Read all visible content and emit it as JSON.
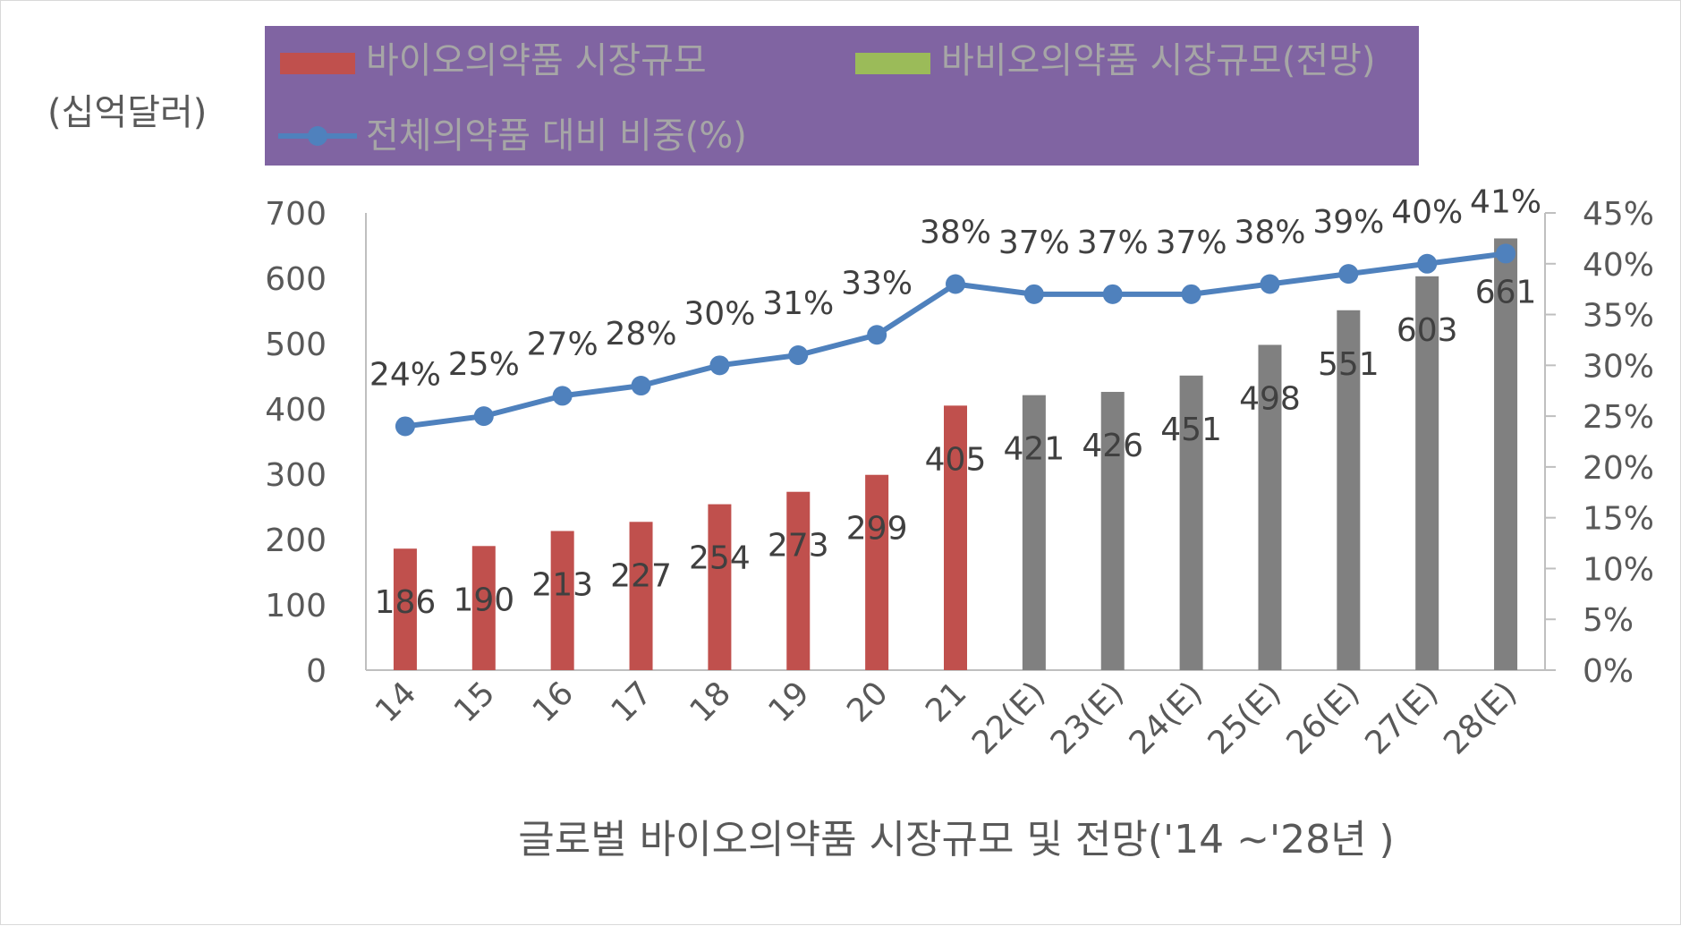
{
  "chart_data": {
    "type": "bar",
    "title": "글로벌 바이오의약품 시장규모 및 전망('14 ~'28년 )",
    "ylabel": "(십억달러)",
    "xlabel": "",
    "categories": [
      "14",
      "15",
      "16",
      "17",
      "18",
      "19",
      "20",
      "21",
      "22(E)",
      "23(E)",
      "24(E)",
      "25(E)",
      "26(E)",
      "27(E)",
      "28(E)"
    ],
    "ylim": [
      0,
      700
    ],
    "y_ticks": [
      "0",
      "100",
      "200",
      "300",
      "400",
      "500",
      "600",
      "700"
    ],
    "y2lim": [
      0,
      45
    ],
    "y2_ticks": [
      "0%",
      "5%",
      "10%",
      "15%",
      "20%",
      "25%",
      "30%",
      "35%",
      "40%",
      "45%"
    ],
    "grid": false,
    "legend_position": "top",
    "series": [
      {
        "name": "바이오의약품 시장규모",
        "kind": "bar",
        "color": "#c0504d",
        "values": [
          186,
          190,
          213,
          227,
          254,
          273,
          299,
          405,
          null,
          null,
          null,
          null,
          null,
          null,
          null
        ],
        "labels": [
          "186",
          "190",
          "213",
          "227",
          "254",
          "273",
          "299",
          "405",
          "",
          "",
          "",
          "",
          "",
          "",
          ""
        ]
      },
      {
        "name": "바비오의약품 시장규모(전망)",
        "kind": "bar",
        "color": "#808080",
        "legend_color": "#9bbb59",
        "values": [
          null,
          null,
          null,
          null,
          null,
          null,
          null,
          null,
          421,
          426,
          451,
          498,
          551,
          603,
          661
        ],
        "labels": [
          "",
          "",
          "",
          "",
          "",
          "",
          "",
          "",
          "421",
          "426",
          "451",
          "498",
          "551",
          "603",
          "661"
        ]
      },
      {
        "name": "전체의약품 대비 비중(%)",
        "kind": "line",
        "axis": "secondary",
        "color": "#4f81bd",
        "values": [
          24,
          25,
          27,
          28,
          30,
          31,
          33,
          38,
          37,
          37,
          37,
          38,
          39,
          40,
          41
        ],
        "labels": [
          "24%",
          "25%",
          "27%",
          "28%",
          "30%",
          "31%",
          "33%",
          "38%",
          "37%",
          "37%",
          "37%",
          "38%",
          "39%",
          "40%",
          "41%"
        ]
      }
    ]
  },
  "legend_bg": "#8064a2"
}
